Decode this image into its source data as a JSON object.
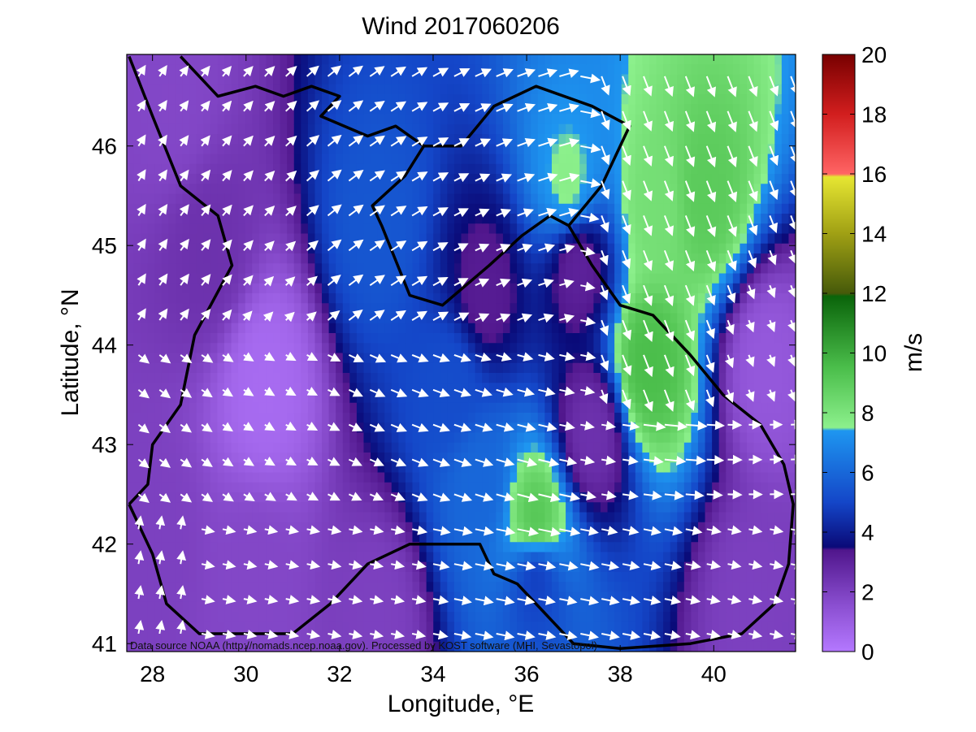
{
  "chart_data": {
    "type": "heatmap",
    "title": "Wind 2017060206",
    "xlabel": "Longitude, °E",
    "ylabel": "Latitude, °N",
    "xlim": [
      27.45,
      41.75
    ],
    "ylim": [
      40.92,
      46.92
    ],
    "xticks": [
      28,
      30,
      32,
      34,
      36,
      38,
      40
    ],
    "yticks": [
      41,
      42,
      43,
      44,
      45,
      46
    ],
    "colorbar": {
      "label": "m/s",
      "min": 0,
      "max": 20,
      "ticks": [
        0,
        2,
        4,
        6,
        8,
        10,
        12,
        14,
        16,
        18,
        20
      ],
      "stops": [
        {
          "v": 0,
          "c": "#b478ff"
        },
        {
          "v": 1.5,
          "c": "#8c50d2"
        },
        {
          "v": 3.4,
          "c": "#50168c"
        },
        {
          "v": 3.5,
          "c": "#0a0a78"
        },
        {
          "v": 5,
          "c": "#1446c8"
        },
        {
          "v": 7.4,
          "c": "#1e96f0"
        },
        {
          "v": 7.5,
          "c": "#8cf08c"
        },
        {
          "v": 9.5,
          "c": "#4bbe4b"
        },
        {
          "v": 11.9,
          "c": "#0a640a"
        },
        {
          "v": 12,
          "c": "#465a0a"
        },
        {
          "v": 14,
          "c": "#a0a014"
        },
        {
          "v": 15.9,
          "c": "#e6e632"
        },
        {
          "v": 16,
          "c": "#ff6464"
        },
        {
          "v": 18,
          "c": "#d21e1e"
        },
        {
          "v": 20,
          "c": "#780000"
        }
      ]
    },
    "wind_centers": [
      {
        "lon": 30.4,
        "lat": 43.6,
        "speed": 0.5
      },
      {
        "lon": 28.4,
        "lat": 46.4,
        "speed": 1.8
      },
      {
        "lon": 29.2,
        "lat": 44.9,
        "speed": 2.5
      },
      {
        "lon": 28.0,
        "lat": 42.0,
        "speed": 2.0
      },
      {
        "lon": 30.2,
        "lat": 41.6,
        "speed": 1.8
      },
      {
        "lon": 32.8,
        "lat": 41.3,
        "speed": 2.0
      },
      {
        "lon": 41.1,
        "lat": 43.8,
        "speed": 1.2
      },
      {
        "lon": 40.8,
        "lat": 41.4,
        "speed": 2.0
      },
      {
        "lon": 37.4,
        "lat": 43.1,
        "speed": 2.5
      },
      {
        "lon": 37.1,
        "lat": 44.8,
        "speed": 3.0
      },
      {
        "lon": 35.1,
        "lat": 44.5,
        "speed": 3.2
      },
      {
        "lon": 32.8,
        "lat": 45.2,
        "speed": 5.5
      },
      {
        "lon": 36.9,
        "lat": 45.6,
        "speed": 7.6
      },
      {
        "lon": 38.8,
        "lat": 45.4,
        "speed": 8.2
      },
      {
        "lon": 39.8,
        "lat": 45.5,
        "speed": 9.0
      },
      {
        "lon": 38.6,
        "lat": 43.8,
        "speed": 9.5
      },
      {
        "lon": 36.2,
        "lat": 42.2,
        "speed": 9.2
      },
      {
        "lon": 35.0,
        "lat": 42.6,
        "speed": 6.0
      },
      {
        "lon": 34.4,
        "lat": 43.6,
        "speed": 5.2
      },
      {
        "lon": 36.2,
        "lat": 41.7,
        "speed": 4.8
      }
    ],
    "source_note": "Data source NOAA (http://nomads.ncep.noaa.gov). Processed by KOST software (MHI, Sevastopol)"
  }
}
